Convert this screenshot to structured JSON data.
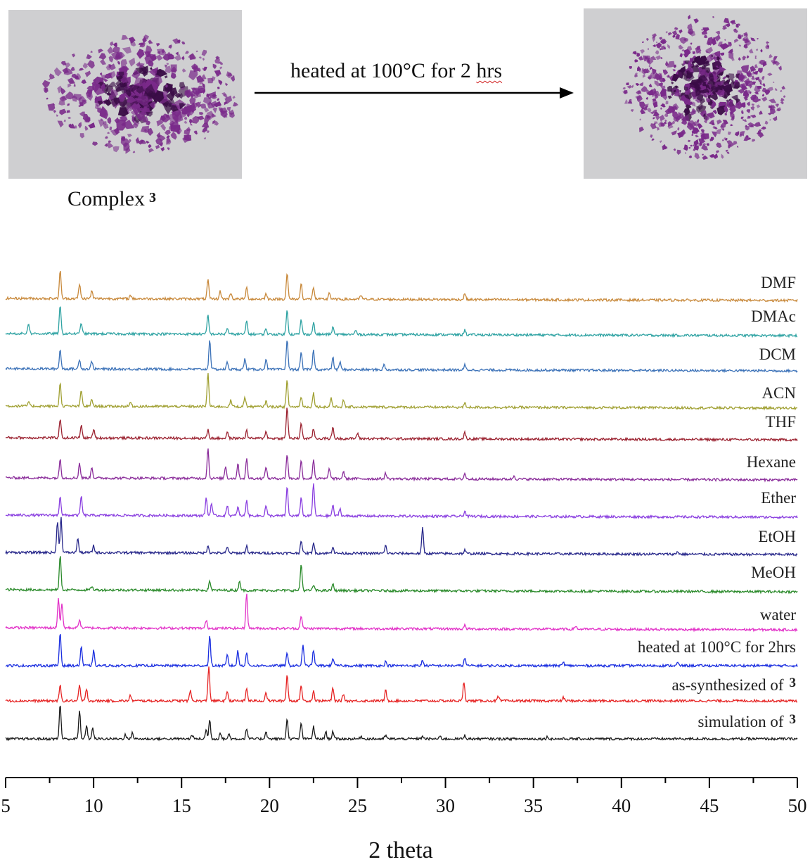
{
  "reaction": {
    "arrow_label_prefix": "heated at 100°C for 2 ",
    "arrow_label_suffix": "hrs",
    "complex_label": "Complex",
    "complex_number": "3"
  },
  "photos": {
    "crystal_color": "#7a2a8a",
    "dark_color": "#3a0c46",
    "background_color": "#cfcfd1"
  },
  "chart_data": {
    "type": "line",
    "title": "",
    "xlabel": "2 theta",
    "ylabel": "",
    "xlim": [
      5,
      50
    ],
    "xticks": [
      5,
      10,
      15,
      20,
      25,
      30,
      35,
      40,
      45,
      50
    ],
    "ylim": null,
    "grid": false,
    "legend": "none",
    "series": [
      {
        "name": "DMF",
        "label_text": "DMF",
        "color": "#c8893b",
        "peaks": [
          [
            8.1,
            0.8
          ],
          [
            9.2,
            0.42
          ],
          [
            9.9,
            0.22
          ],
          [
            12.1,
            0.1
          ],
          [
            16.5,
            0.55
          ],
          [
            17.2,
            0.22
          ],
          [
            17.8,
            0.18
          ],
          [
            18.7,
            0.32
          ],
          [
            19.8,
            0.15
          ],
          [
            21.0,
            0.75
          ],
          [
            21.8,
            0.45
          ],
          [
            22.5,
            0.35
          ],
          [
            23.4,
            0.2
          ],
          [
            25.2,
            0.12
          ],
          [
            31.1,
            0.18
          ]
        ]
      },
      {
        "name": "DMAc",
        "label_text": "DMAc",
        "color": "#2fa3a3",
        "peaks": [
          [
            6.3,
            0.3
          ],
          [
            8.1,
            0.8
          ],
          [
            9.3,
            0.32
          ],
          [
            16.5,
            0.55
          ],
          [
            17.6,
            0.18
          ],
          [
            18.7,
            0.38
          ],
          [
            19.8,
            0.16
          ],
          [
            21.0,
            0.72
          ],
          [
            21.8,
            0.42
          ],
          [
            22.5,
            0.35
          ],
          [
            23.6,
            0.2
          ],
          [
            24.9,
            0.12
          ],
          [
            31.1,
            0.14
          ]
        ]
      },
      {
        "name": "DCM",
        "label_text": "DCM",
        "color": "#3c72b8",
        "peaks": [
          [
            8.1,
            0.55
          ],
          [
            9.2,
            0.28
          ],
          [
            9.9,
            0.22
          ],
          [
            16.6,
            0.85
          ],
          [
            17.6,
            0.2
          ],
          [
            18.6,
            0.3
          ],
          [
            19.8,
            0.3
          ],
          [
            21.0,
            0.88
          ],
          [
            21.8,
            0.5
          ],
          [
            22.5,
            0.55
          ],
          [
            23.6,
            0.35
          ],
          [
            24.0,
            0.22
          ],
          [
            26.5,
            0.15
          ],
          [
            31.1,
            0.14
          ]
        ]
      },
      {
        "name": "ACN",
        "label_text": "ACN",
        "color": "#a0a032",
        "peaks": [
          [
            6.3,
            0.12
          ],
          [
            8.1,
            0.65
          ],
          [
            9.3,
            0.45
          ],
          [
            9.9,
            0.2
          ],
          [
            12.1,
            0.12
          ],
          [
            16.5,
            0.95
          ],
          [
            17.8,
            0.18
          ],
          [
            18.6,
            0.28
          ],
          [
            19.8,
            0.16
          ],
          [
            21.0,
            0.75
          ],
          [
            21.8,
            0.3
          ],
          [
            22.5,
            0.4
          ],
          [
            23.5,
            0.26
          ],
          [
            24.2,
            0.18
          ],
          [
            31.1,
            0.12
          ]
        ]
      },
      {
        "name": "THF",
        "label_text": "THF",
        "color": "#9b2230",
        "peaks": [
          [
            8.1,
            0.55
          ],
          [
            9.3,
            0.35
          ],
          [
            10.0,
            0.24
          ],
          [
            16.5,
            0.25
          ],
          [
            17.6,
            0.18
          ],
          [
            18.7,
            0.22
          ],
          [
            19.8,
            0.22
          ],
          [
            21.0,
            0.9
          ],
          [
            21.8,
            0.45
          ],
          [
            22.5,
            0.28
          ],
          [
            23.6,
            0.32
          ],
          [
            25.0,
            0.16
          ],
          [
            31.1,
            0.18
          ]
        ]
      },
      {
        "name": "Hexane",
        "label_text": "Hexane",
        "color": "#8a2c9a",
        "peaks": [
          [
            8.1,
            0.55
          ],
          [
            9.2,
            0.42
          ],
          [
            9.9,
            0.32
          ],
          [
            16.5,
            0.85
          ],
          [
            17.5,
            0.35
          ],
          [
            18.2,
            0.42
          ],
          [
            18.7,
            0.55
          ],
          [
            19.8,
            0.35
          ],
          [
            21.0,
            0.7
          ],
          [
            21.8,
            0.5
          ],
          [
            22.5,
            0.55
          ],
          [
            23.4,
            0.3
          ],
          [
            24.2,
            0.2
          ],
          [
            26.6,
            0.16
          ],
          [
            31.1,
            0.16
          ],
          [
            33.9,
            0.1
          ]
        ]
      },
      {
        "name": "Ether",
        "label_text": "Ether",
        "color": "#8a3fe0",
        "peaks": [
          [
            8.1,
            0.55
          ],
          [
            9.3,
            0.55
          ],
          [
            16.4,
            0.5
          ],
          [
            16.7,
            0.35
          ],
          [
            17.6,
            0.3
          ],
          [
            18.2,
            0.25
          ],
          [
            18.7,
            0.45
          ],
          [
            19.8,
            0.3
          ],
          [
            21.0,
            0.85
          ],
          [
            21.8,
            0.55
          ],
          [
            22.5,
            0.95
          ],
          [
            23.6,
            0.3
          ],
          [
            24.0,
            0.22
          ],
          [
            31.1,
            0.16
          ]
        ]
      },
      {
        "name": "EtOH",
        "label_text": "EtOH",
        "color": "#27278a",
        "peaks": [
          [
            7.95,
            0.9
          ],
          [
            8.15,
            1.0
          ],
          [
            9.1,
            0.4
          ],
          [
            10.0,
            0.2
          ],
          [
            16.5,
            0.22
          ],
          [
            17.6,
            0.16
          ],
          [
            18.7,
            0.2
          ],
          [
            21.8,
            0.38
          ],
          [
            22.5,
            0.3
          ],
          [
            23.6,
            0.2
          ],
          [
            26.6,
            0.22
          ],
          [
            28.7,
            0.72
          ],
          [
            31.1,
            0.1
          ],
          [
            43.2,
            0.08
          ]
        ]
      },
      {
        "name": "MeOH",
        "label_text": "MeOH",
        "color": "#2a8a2a",
        "peaks": [
          [
            8.1,
            1.0
          ],
          [
            9.9,
            0.1
          ],
          [
            16.6,
            0.28
          ],
          [
            18.3,
            0.28
          ],
          [
            21.8,
            0.75
          ],
          [
            22.5,
            0.16
          ],
          [
            23.6,
            0.18
          ]
        ]
      },
      {
        "name": "water",
        "label_text": "water",
        "color": "#e232c8",
        "peaks": [
          [
            8.0,
            0.85
          ],
          [
            8.2,
            0.7
          ],
          [
            9.2,
            0.25
          ],
          [
            16.4,
            0.22
          ],
          [
            18.7,
            1.0
          ],
          [
            21.8,
            0.38
          ],
          [
            31.1,
            0.1
          ],
          [
            37.4,
            0.1
          ]
        ]
      },
      {
        "name": "heated at 100°C for 2hrs",
        "label_text": "heated at 100°C for 2hrs",
        "color": "#1a2ee0",
        "peaks": [
          [
            8.1,
            0.95
          ],
          [
            9.3,
            0.55
          ],
          [
            10.0,
            0.42
          ],
          [
            16.6,
            0.85
          ],
          [
            17.6,
            0.3
          ],
          [
            18.2,
            0.42
          ],
          [
            18.7,
            0.4
          ],
          [
            21.0,
            0.35
          ],
          [
            21.9,
            0.6
          ],
          [
            22.5,
            0.45
          ],
          [
            23.6,
            0.22
          ],
          [
            26.6,
            0.12
          ],
          [
            28.7,
            0.16
          ],
          [
            31.1,
            0.22
          ],
          [
            36.7,
            0.1
          ],
          [
            43.2,
            0.08
          ]
        ]
      },
      {
        "name": "as-synthesized of 3",
        "label_text": "as-synthesized of",
        "label_num": "3",
        "color": "#e62424",
        "peaks": [
          [
            8.1,
            0.45
          ],
          [
            9.2,
            0.45
          ],
          [
            9.6,
            0.35
          ],
          [
            12.1,
            0.16
          ],
          [
            15.5,
            0.3
          ],
          [
            16.55,
            1.0
          ],
          [
            17.6,
            0.28
          ],
          [
            18.7,
            0.35
          ],
          [
            19.8,
            0.25
          ],
          [
            21.0,
            0.75
          ],
          [
            21.8,
            0.45
          ],
          [
            22.5,
            0.28
          ],
          [
            23.6,
            0.36
          ],
          [
            24.2,
            0.2
          ],
          [
            26.6,
            0.3
          ],
          [
            31.05,
            0.55
          ],
          [
            33.0,
            0.12
          ],
          [
            36.7,
            0.1
          ]
        ]
      },
      {
        "name": "simulation of 3",
        "label_text": "simulation of",
        "label_num": "3",
        "color": "#1a1a1a",
        "peaks": [
          [
            8.1,
            1.0
          ],
          [
            9.2,
            0.8
          ],
          [
            9.6,
            0.4
          ],
          [
            9.95,
            0.3
          ],
          [
            11.8,
            0.12
          ],
          [
            12.2,
            0.18
          ],
          [
            15.6,
            0.12
          ],
          [
            16.4,
            0.25
          ],
          [
            16.6,
            0.55
          ],
          [
            17.2,
            0.18
          ],
          [
            17.7,
            0.14
          ],
          [
            18.7,
            0.3
          ],
          [
            19.8,
            0.22
          ],
          [
            21.0,
            0.55
          ],
          [
            21.8,
            0.45
          ],
          [
            22.5,
            0.35
          ],
          [
            23.2,
            0.2
          ],
          [
            23.6,
            0.22
          ],
          [
            25.2,
            0.08
          ],
          [
            26.6,
            0.1
          ],
          [
            28.7,
            0.08
          ],
          [
            29.7,
            0.07
          ],
          [
            31.1,
            0.1
          ],
          [
            35.8,
            0.06
          ]
        ]
      }
    ]
  }
}
